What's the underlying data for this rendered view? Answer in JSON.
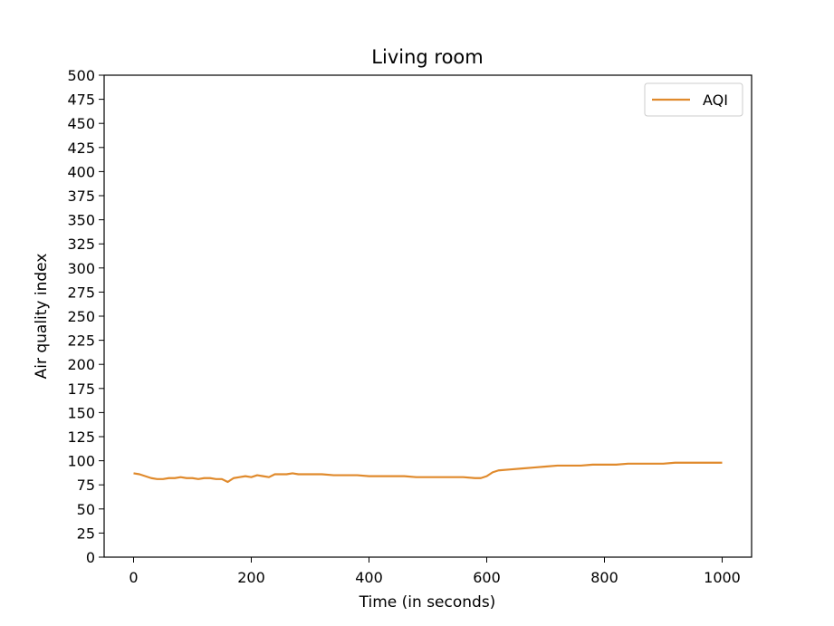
{
  "chart_data": {
    "type": "line",
    "title": "Living room",
    "xlabel": "Time (in seconds)",
    "ylabel": "Air quality index",
    "xlim": [
      -50,
      1050
    ],
    "ylim": [
      0,
      500
    ],
    "xticks": [
      0,
      200,
      400,
      600,
      800,
      1000
    ],
    "yticks": [
      0,
      25,
      50,
      75,
      100,
      125,
      150,
      175,
      200,
      225,
      250,
      275,
      300,
      325,
      350,
      375,
      400,
      425,
      450,
      475,
      500
    ],
    "grid": false,
    "legend_position": "top-right",
    "series": [
      {
        "name": "AQI",
        "color": "#e08a2c",
        "x": [
          0,
          10,
          20,
          30,
          40,
          50,
          60,
          70,
          80,
          90,
          100,
          110,
          120,
          130,
          140,
          150,
          160,
          170,
          180,
          190,
          200,
          210,
          220,
          230,
          240,
          250,
          260,
          270,
          280,
          290,
          300,
          320,
          340,
          360,
          380,
          400,
          420,
          440,
          460,
          480,
          500,
          520,
          540,
          560,
          580,
          590,
          600,
          610,
          620,
          640,
          660,
          680,
          700,
          720,
          740,
          760,
          780,
          800,
          820,
          840,
          860,
          880,
          900,
          920,
          940,
          960,
          980,
          1000
        ],
        "y": [
          87,
          86,
          84,
          82,
          81,
          81,
          82,
          82,
          83,
          82,
          82,
          81,
          82,
          82,
          81,
          81,
          78,
          82,
          83,
          84,
          83,
          85,
          84,
          83,
          86,
          86,
          86,
          87,
          86,
          86,
          86,
          86,
          85,
          85,
          85,
          84,
          84,
          84,
          84,
          83,
          83,
          83,
          83,
          83,
          82,
          82,
          84,
          88,
          90,
          91,
          92,
          93,
          94,
          95,
          95,
          95,
          96,
          96,
          96,
          97,
          97,
          97,
          97,
          98,
          98,
          98,
          98,
          98
        ]
      }
    ]
  }
}
